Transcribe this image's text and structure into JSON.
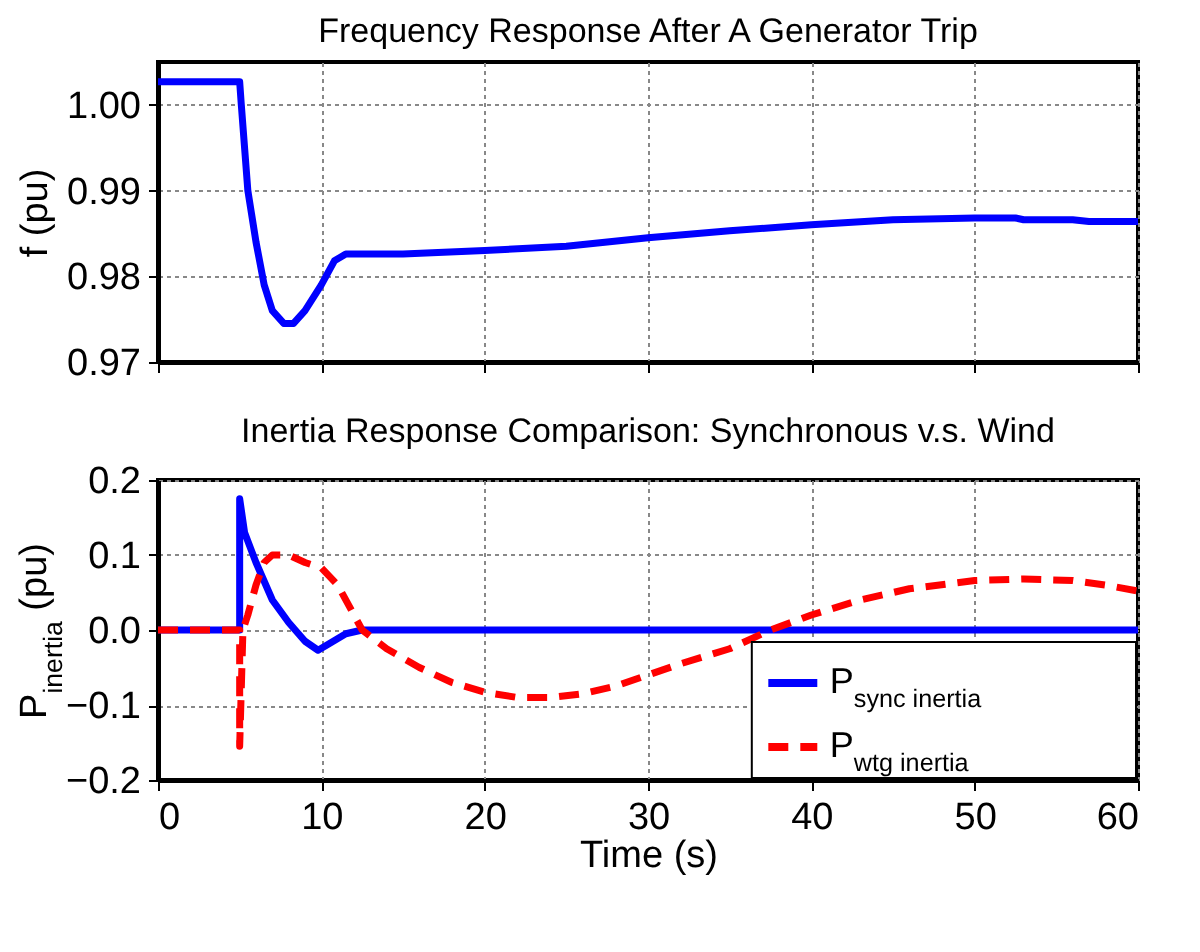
{
  "chart_data": [
    {
      "type": "line",
      "title": "Frequency Response After A Generator Trip",
      "ylabel": "f (pu)",
      "x": [
        0,
        5,
        5.1,
        5.5,
        6,
        6.5,
        7,
        7.7,
        8.3,
        9,
        10,
        10.8,
        11.5,
        15,
        20,
        25,
        30,
        35,
        40,
        45,
        50,
        52.5,
        53,
        56,
        57,
        60
      ],
      "series": [
        {
          "color": "#0000ff",
          "line_style": "solid",
          "values": [
            1.0027,
            1.0027,
            1.0,
            0.99,
            0.984,
            0.979,
            0.976,
            0.9745,
            0.9745,
            0.976,
            0.979,
            0.9818,
            0.9826,
            0.9826,
            0.983,
            0.9835,
            0.9845,
            0.9853,
            0.986,
            0.9866,
            0.9868,
            0.9868,
            0.9866,
            0.9866,
            0.9864,
            0.9864
          ]
        }
      ],
      "xlim": [
        0,
        60
      ],
      "xticks": [
        0,
        10,
        20,
        30,
        40,
        50,
        60
      ],
      "ylim": [
        0.97,
        1.005
      ],
      "yticks": [
        0.97,
        0.98,
        0.99,
        {
          "value": 1,
          "label": "1.00"
        }
      ],
      "grid": true,
      "tick_labels": "y"
    },
    {
      "type": "line",
      "title": "Inertia Response Comparison: Synchronous v.s. Wind",
      "xlabel": "Time (s)",
      "ylabel": "P$_{inertia}$ (pu)",
      "series": [
        {
          "name": "P$_{sync inertia}$",
          "color": "#0000ff",
          "line_style": "solid",
          "x": [
            0,
            5,
            5,
            5.3,
            6,
            7,
            8,
            9,
            9.8,
            10.5,
            11.5,
            12.5,
            60
          ],
          "values": [
            0,
            0,
            0.175,
            0.13,
            0.09,
            0.04,
            0.01,
            -0.015,
            -0.027,
            -0.018,
            -0.005,
            0,
            0
          ]
        },
        {
          "name": "P$_{wtg inertia}$",
          "color": "#ff0000",
          "line_style": "dashed",
          "x": [
            0,
            5,
            5,
            5.2,
            5.5,
            6,
            6.5,
            7,
            8,
            9,
            10,
            11,
            12,
            12.5,
            14,
            16,
            18,
            20,
            22,
            24,
            26,
            28,
            30,
            32,
            35,
            37.5,
            40,
            43,
            46,
            50,
            53,
            56,
            58,
            60
          ],
          "values": [
            0,
            0,
            -0.155,
            0,
            0.02,
            0.06,
            0.09,
            0.1,
            0.1,
            0.09,
            0.083,
            0.06,
            0.02,
            0,
            -0.025,
            -0.05,
            -0.07,
            -0.083,
            -0.09,
            -0.09,
            -0.085,
            -0.075,
            -0.06,
            -0.045,
            -0.025,
            0,
            0.02,
            0.04,
            0.055,
            0.066,
            0.068,
            0.066,
            0.06,
            0.052
          ]
        }
      ],
      "xlim": [
        0,
        60
      ],
      "xticks": [
        0,
        10,
        20,
        30,
        40,
        50,
        60
      ],
      "ylim": [
        -0.2,
        0.2
      ],
      "yticks": [
        -0.2,
        -0.1,
        {
          "value": 0,
          "label": "0.0"
        },
        0.1,
        0.2
      ],
      "grid": true,
      "legend": "bottom right"
    }
  ]
}
